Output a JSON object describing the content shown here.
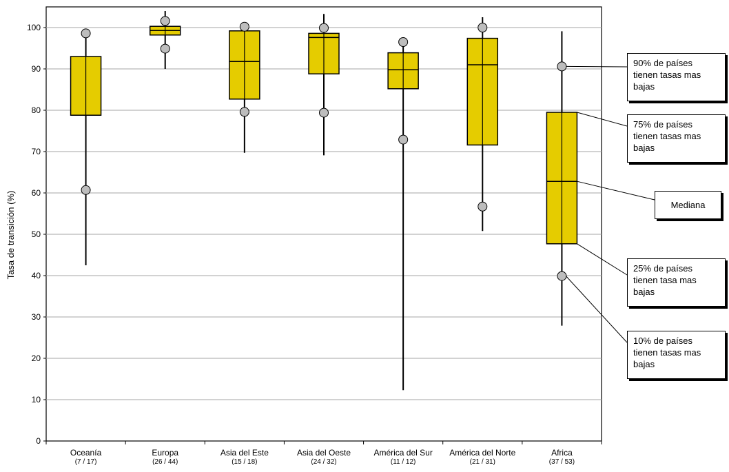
{
  "chart_data": {
    "type": "boxplot",
    "ylabel": "Tasa de transición (%)",
    "xlabel": "",
    "ylim": [
      0,
      105
    ],
    "yticks": [
      0,
      10,
      20,
      30,
      40,
      50,
      60,
      70,
      80,
      90,
      100
    ],
    "grid": "horizontal",
    "colors": {
      "box_fill": "#E5CC00",
      "marker_fill": "#BDBDBD",
      "grid": "#A6A6A6",
      "stroke": "#000000"
    },
    "categories": [
      {
        "name": "Oceanía",
        "sub": "(7 / 17)",
        "min": 42.5,
        "p10": 60.7,
        "q1": 78.8,
        "median": 78.8,
        "q3": 93,
        "p90": 98.6,
        "max": 98.6
      },
      {
        "name": "Europa",
        "sub": "(26 / 44)",
        "min": 90,
        "p10": 94.9,
        "q1": 98.2,
        "median": 99.3,
        "q3": 100.3,
        "p90": 101.6,
        "max": 104
      },
      {
        "name": "Asia del Este",
        "sub": "(15 / 18)",
        "min": 69.7,
        "p10": 79.6,
        "q1": 82.7,
        "median": 91.8,
        "q3": 99.2,
        "p90": 100.2,
        "max": 100.2
      },
      {
        "name": "Asia del Oeste",
        "sub": "(24 / 32)",
        "min": 69.1,
        "p10": 79.4,
        "q1": 88.8,
        "median": 97.6,
        "q3": 98.6,
        "p90": 99.9,
        "max": 103.3
      },
      {
        "name": "América del Sur",
        "sub": "(11 / 12)",
        "min": 12.3,
        "p10": 72.9,
        "q1": 85.2,
        "median": 89.8,
        "q3": 93.9,
        "p90": 96.5,
        "max": 96.5
      },
      {
        "name": "América del Norte",
        "sub": "(21 / 31)",
        "min": 50.8,
        "p10": 56.7,
        "q1": 71.6,
        "median": 91,
        "q3": 97.4,
        "p90": 100,
        "max": 102.5
      },
      {
        "name": "Africa",
        "sub": "(37 / 53)",
        "min": 27.9,
        "p10": 39.9,
        "q1": 47.7,
        "median": 62.8,
        "q3": 79.5,
        "p90": 90.6,
        "max": 99.1
      }
    ],
    "annotations": [
      {
        "key": "p90",
        "text": "90% de países\ntienen tasas mas\nbajas"
      },
      {
        "key": "q3",
        "text": "75% de países\ntienen tasas mas\nbajas"
      },
      {
        "key": "median",
        "text": "Mediana"
      },
      {
        "key": "q1",
        "text": "25% de países\ntienen tasa mas\nbajas"
      },
      {
        "key": "p10",
        "text": "10% de países\ntienen tasas mas\nbajas"
      }
    ]
  }
}
